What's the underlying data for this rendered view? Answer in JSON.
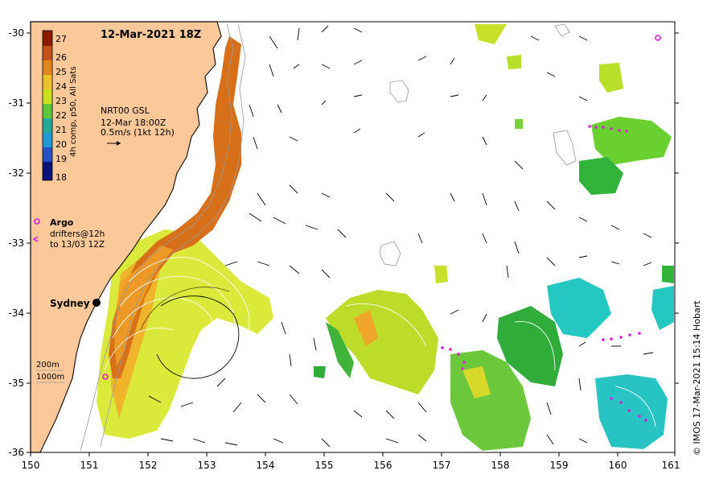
{
  "map": {
    "title": "12-Mar-2021 18Z",
    "lon_ticks": [
      "150",
      "151",
      "152",
      "153",
      "154",
      "155",
      "156",
      "157",
      "158",
      "159",
      "160",
      "161"
    ],
    "lat_ticks": [
      "-30",
      "-31",
      "-32",
      "-33",
      "-34",
      "-35",
      "-36"
    ],
    "colorbar": {
      "ticks": [
        "27",
        "26",
        "25",
        "24",
        "23",
        "22",
        "21",
        "20",
        "19",
        "18"
      ],
      "label": "4h comp, p50, All Sats",
      "colors": [
        "#8b1a00",
        "#c4501a",
        "#e0861c",
        "#ecc22a",
        "#c9e21e",
        "#5cc83a",
        "#23a89a",
        "#1f9ad6",
        "#2451c4",
        "#0a1478"
      ]
    },
    "current_info": {
      "line1": "NRT00 GSL",
      "line2": "12-Mar 18:00Z",
      "line3": "0.5m/s (1kt 12h)"
    },
    "legend": {
      "argo_label": "Argo",
      "drifters_line1": "drifters@12h",
      "drifters_line2": "to 13/03 12Z",
      "depth1": "200m",
      "depth2": "1000m"
    },
    "city": "Sydney",
    "credit": "© IMOS 17-Mar-2021 15:14 Hobart",
    "colors": {
      "land": "#fbc89a",
      "warm_current": "#d8701a",
      "ocean": "#ffffff"
    }
  }
}
